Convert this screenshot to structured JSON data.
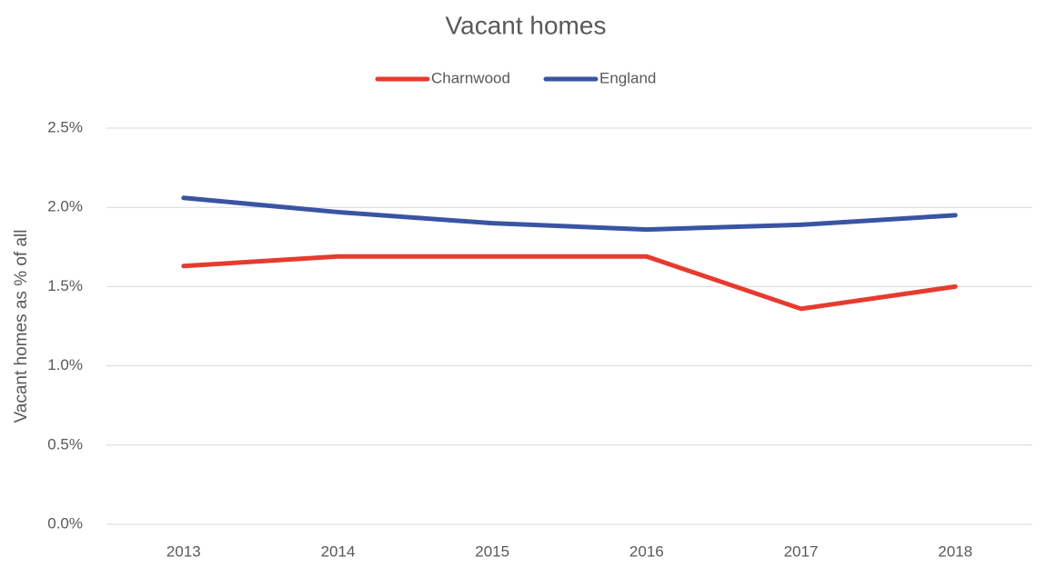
{
  "chart_data": {
    "type": "line",
    "title": "Vacant homes",
    "y_label": "Vacant homes as % of all",
    "categories": [
      "2013",
      "2014",
      "2015",
      "2016",
      "2017",
      "2018"
    ],
    "series": [
      {
        "name": "Charnwood",
        "color": "#e63b2e",
        "values": [
          1.63,
          1.69,
          1.69,
          1.69,
          1.36,
          1.5
        ]
      },
      {
        "name": "England",
        "color": "#3a54a4",
        "values": [
          2.06,
          1.97,
          1.9,
          1.86,
          1.89,
          1.95
        ]
      }
    ],
    "ylim": [
      0,
      2.5
    ],
    "yticks": [
      {
        "value": 0,
        "label": "0.0%"
      },
      {
        "value": 0.5,
        "label": "0.5%"
      },
      {
        "value": 1,
        "label": "1.0%"
      },
      {
        "value": 1.5,
        "label": "1.5%"
      },
      {
        "value": 2,
        "label": "2.0%"
      },
      {
        "value": 2.5,
        "label": "2.5%"
      }
    ],
    "grid": true,
    "legend": "top"
  }
}
